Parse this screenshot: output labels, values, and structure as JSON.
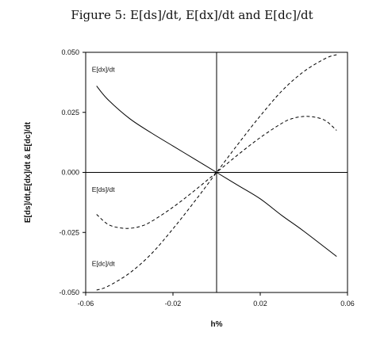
{
  "figure_title": "Figure 5: E[ds]/dt, E[dx]/dt and E[dc]/dt",
  "chart_data": {
    "type": "line",
    "title": "Figure 5: E[ds]/dt, E[dx]/dt and E[dc]/dt",
    "xlabel": "h%",
    "ylabel": "E[ds]/dt,E[dx]/dt & E[dc]/dt",
    "xlim": [
      -0.06,
      0.06
    ],
    "ylim": [
      -0.05,
      0.05
    ],
    "x_ticks": [
      -0.06,
      -0.02,
      0.02,
      0.06
    ],
    "x_tick_labels": [
      "-0.06",
      "-0.02",
      "0.02",
      "0.06"
    ],
    "y_ticks": [
      -0.05,
      -0.025,
      0.0,
      0.025,
      0.05
    ],
    "y_tick_labels": [
      "-0.050",
      "-0.025",
      "0.000",
      "0.025",
      "0.050"
    ],
    "zero_lines": true,
    "grid": false,
    "series": [
      {
        "name": "E[dx]/dt",
        "style": "solid",
        "color": "#000000",
        "x": [
          -0.055,
          -0.05,
          -0.04,
          -0.03,
          -0.02,
          -0.01,
          0.0,
          0.01,
          0.02,
          0.03,
          0.04,
          0.055
        ],
        "y": [
          0.036,
          0.0305,
          0.0225,
          0.0165,
          0.011,
          0.0055,
          0.0,
          -0.0055,
          -0.011,
          -0.018,
          -0.0245,
          -0.035
        ]
      },
      {
        "name": "E[ds]/dt",
        "style": "dashed",
        "color": "#000000",
        "x": [
          -0.055,
          -0.05,
          -0.045,
          -0.04,
          -0.035,
          -0.03,
          -0.02,
          -0.01,
          0.0,
          0.01,
          0.02,
          0.03,
          0.035,
          0.04,
          0.045,
          0.05,
          0.055
        ],
        "y": [
          -0.0175,
          -0.0215,
          -0.023,
          -0.0233,
          -0.0225,
          -0.0205,
          -0.0145,
          -0.0075,
          0.0,
          0.0075,
          0.0145,
          0.0205,
          0.0225,
          0.0233,
          0.023,
          0.0215,
          0.0175
        ]
      },
      {
        "name": "E[dc]/dt",
        "style": "dashed",
        "color": "#000000",
        "x": [
          -0.055,
          -0.05,
          -0.04,
          -0.03,
          -0.02,
          -0.01,
          0.0,
          0.01,
          0.02,
          0.03,
          0.04,
          0.05,
          0.055
        ],
        "y": [
          -0.049,
          -0.0475,
          -0.042,
          -0.034,
          -0.0235,
          -0.012,
          0.0,
          0.012,
          0.0235,
          0.034,
          0.042,
          0.0475,
          0.049
        ]
      }
    ],
    "annotations": [
      {
        "text": "E[dx]/dt",
        "x": -0.055,
        "y": 0.04
      },
      {
        "text": "E[ds]/dt",
        "x": -0.055,
        "y": -0.01
      },
      {
        "text": "E[dc]/dt",
        "x": -0.055,
        "y": -0.041
      }
    ]
  }
}
